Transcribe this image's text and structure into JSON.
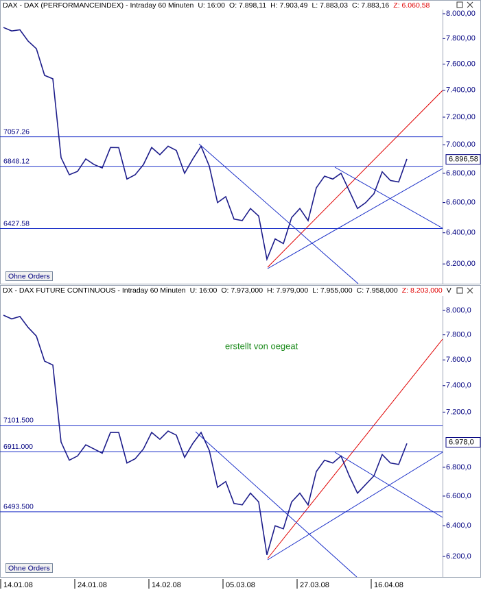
{
  "chart_data": [
    {
      "type": "line",
      "log": true,
      "color": "#1c1c8a",
      "title": "DAX - DAX (PERFORMANCEINDEX) - Intraday 60 Minuten",
      "stats": [
        "U: 16:00",
        "O: 7.898,11",
        "H: 7.903,49",
        "L: 7.883,03",
        "C: 7.883,16"
      ],
      "z_stat": "Z: 6.060,58",
      "button": "Ohne Orders",
      "values": [
        7889,
        7861,
        7870,
        7780,
        7720,
        7513,
        7487,
        6909,
        6790,
        6813,
        6900,
        6861,
        6837,
        6981,
        6980,
        6760,
        6790,
        6860,
        6981,
        6930,
        6990,
        6960,
        6800,
        6900,
        6990,
        6850,
        6600,
        6640,
        6490,
        6480,
        6560,
        6510,
        6230,
        6360,
        6330,
        6500,
        6560,
        6480,
        6700,
        6780,
        6760,
        6800,
        6680,
        6560,
        6600,
        6660,
        6810,
        6750,
        6740,
        6900
      ],
      "ylim": [
        6085,
        8045
      ],
      "yticks": [
        {
          "value": 8000,
          "label": "8.000,00"
        },
        {
          "value": 7800,
          "label": "7.800,00"
        },
        {
          "value": 7600,
          "label": "7.600,00"
        },
        {
          "value": 7400,
          "label": "7.400,00"
        },
        {
          "value": 7200,
          "label": "7.200,00"
        },
        {
          "value": 7000,
          "label": "7.000,00"
        },
        {
          "value": 6800,
          "label": "6.800,00"
        },
        {
          "value": 6600,
          "label": "6.600,00"
        },
        {
          "value": 6400,
          "label": "6.400,00"
        },
        {
          "value": 6200,
          "label": "6.200,00"
        }
      ],
      "levels": [
        {
          "value": 7057.26,
          "label": "7057.26"
        },
        {
          "value": 6848.12,
          "label": "6848.12"
        },
        {
          "value": 6427.58,
          "label": "6427.58"
        }
      ],
      "last": {
        "value": 6896.58,
        "label": "6.896,58"
      }
    },
    {
      "type": "line",
      "log": true,
      "color": "#1c1c8a",
      "title": "DX - DAX FUTURE CONTINUOUS - Intraday 60 Minuten",
      "stats": [
        "U: 16:00",
        "O: 7.973,000",
        "H: 7.979,000",
        "L: 7.955,000",
        "C: 7.958,000"
      ],
      "z_stat": "Z: 8.203,000",
      "v_stat": "V",
      "button": "Ohne Orders",
      "annotation": "erstellt von oegeat",
      "categories": [
        "14.01.08",
        null,
        null,
        null,
        null,
        null,
        null,
        null,
        null,
        "24.01.08",
        null,
        null,
        null,
        null,
        null,
        null,
        null,
        null,
        "14.02.08",
        null,
        null,
        null,
        null,
        null,
        null,
        null,
        null,
        "05.03.08",
        null,
        null,
        null,
        null,
        null,
        null,
        null,
        null,
        "27.03.08",
        null,
        null,
        null,
        null,
        null,
        null,
        null,
        null,
        "16.04.08",
        null,
        null,
        null,
        null
      ],
      "values": [
        7960,
        7930,
        7950,
        7860,
        7790,
        7590,
        7560,
        6980,
        6850,
        6880,
        6960,
        6930,
        6900,
        7050,
        7050,
        6830,
        6860,
        6930,
        7050,
        7000,
        7060,
        7030,
        6870,
        6970,
        7050,
        6920,
        6660,
        6700,
        6550,
        6540,
        6620,
        6560,
        6210,
        6400,
        6380,
        6560,
        6620,
        6540,
        6770,
        6850,
        6830,
        6880,
        6740,
        6620,
        6680,
        6740,
        6890,
        6830,
        6820,
        6970
      ],
      "ylim": [
        6078,
        8120
      ],
      "yticks": [
        {
          "value": 8000,
          "label": "8.000,0"
        },
        {
          "value": 7800,
          "label": "7.800,0"
        },
        {
          "value": 7600,
          "label": "7.600,0"
        },
        {
          "value": 7400,
          "label": "7.400,0"
        },
        {
          "value": 7200,
          "label": "7.200,0"
        },
        {
          "value": 6800,
          "label": "6.800,0"
        },
        {
          "value": 6600,
          "label": "6.600,0"
        },
        {
          "value": 6400,
          "label": "6.400,0"
        },
        {
          "value": 6200,
          "label": "6.200,0"
        }
      ],
      "levels": [
        {
          "value": 7101.5,
          "label": "7101.500"
        },
        {
          "value": 6911.0,
          "label": "6911.000"
        },
        {
          "value": 6493.5,
          "label": "6493.500"
        }
      ],
      "last": {
        "value": 6978.0,
        "label": "6.978,0"
      }
    }
  ]
}
